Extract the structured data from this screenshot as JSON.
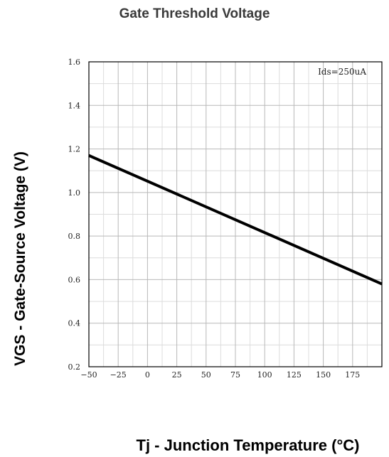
{
  "chart_data": {
    "type": "line",
    "title": "Gate Threshold Voltage",
    "xlabel": "Tj - Junction Temperature (°C)",
    "ylabel": "VGS - Gate-Source Voltage (V)",
    "xlim": [
      -50,
      200
    ],
    "ylim": [
      0.2,
      1.6
    ],
    "xticks": [
      -50,
      -25,
      0,
      25,
      50,
      75,
      100,
      125,
      150,
      175
    ],
    "yticks": [
      "0.2",
      "0.4",
      "0.6",
      "0.8",
      "1.0",
      "1.2",
      "1.4",
      "1.6"
    ],
    "grid": true,
    "annotation": "Ids=250uA",
    "series": [
      {
        "x": [
          -50,
          200
        ],
        "y": [
          1.17,
          0.58
        ]
      }
    ]
  }
}
